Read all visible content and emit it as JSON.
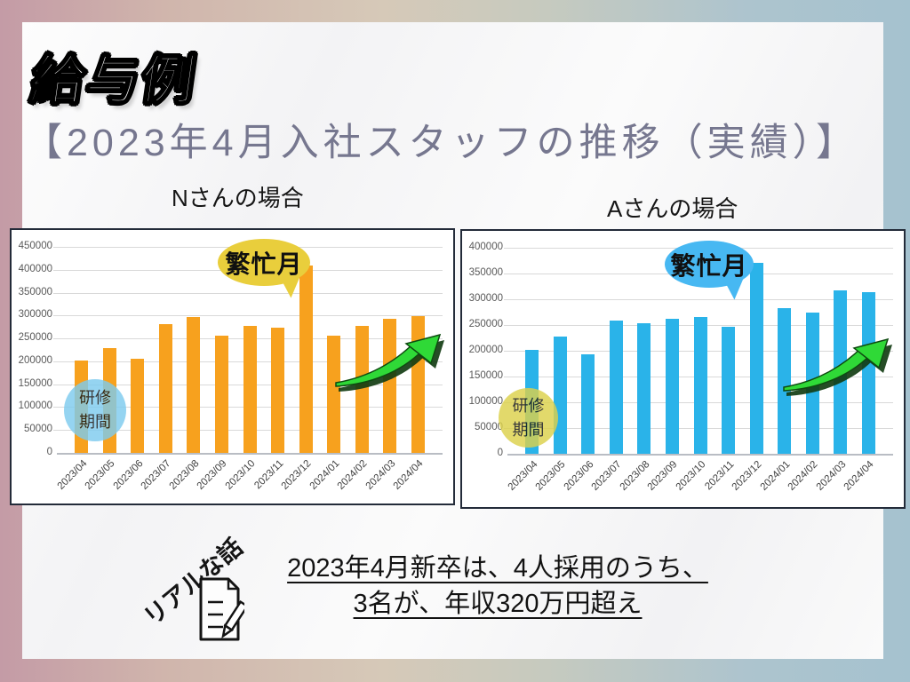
{
  "slide": {
    "title": "給与例",
    "subtitle": "【2023年4月入社スタッフの推移（実績）】",
    "background_colors": {
      "left": "#C49BA6",
      "middle": "#D6C9B8",
      "right": "#A5C2CF"
    },
    "content_panel_color": "#F6F6F8"
  },
  "chart_data": [
    {
      "type": "bar",
      "title": "Nさんの場合",
      "categories": [
        "2023/04",
        "2023/05",
        "2023/06",
        "2023/07",
        "2023/08",
        "2023/09",
        "2023/10",
        "2023/11",
        "2023/12",
        "2024/01",
        "2024/02",
        "2024/03",
        "2024/04"
      ],
      "values": [
        202000,
        228000,
        205000,
        281000,
        297000,
        257000,
        277000,
        274000,
        410000,
        257000,
        277000,
        292000,
        299000
      ],
      "ylim": [
        0,
        450000
      ],
      "yticks": [
        450000,
        400000,
        350000,
        300000,
        250000,
        200000,
        150000,
        100000,
        50000,
        0
      ],
      "grid": true,
      "legend": "none",
      "bar_color": "#F7A11E",
      "annotations": {
        "busy_month": "繁忙月",
        "busy_bubble_color": "#E9CE3C",
        "training_line1": "研修",
        "training_line2": "期間",
        "training_circle_color": "#7ECBEE",
        "arrow_color": "#2FD937"
      }
    },
    {
      "type": "bar",
      "title": "Aさんの場合",
      "categories": [
        "2023/04",
        "2023/05",
        "2023/06",
        "2023/07",
        "2023/08",
        "2023/09",
        "2023/10",
        "2023/11",
        "2023/12",
        "2024/01",
        "2024/02",
        "2024/03",
        "2024/04"
      ],
      "values": [
        202000,
        228000,
        193000,
        259000,
        254000,
        262000,
        265000,
        247000,
        370000,
        282000,
        274000,
        317000,
        314000
      ],
      "ylim": [
        0,
        400000
      ],
      "yticks": [
        400000,
        350000,
        300000,
        250000,
        200000,
        150000,
        100000,
        50000,
        0
      ],
      "grid": true,
      "legend": "none",
      "bar_color": "#2AB3E9",
      "annotations": {
        "busy_month": "繁忙月",
        "busy_bubble_color": "#47B8F2",
        "training_line1": "研修",
        "training_line2": "期間",
        "training_circle_color": "#DCD14B",
        "arrow_color": "#2FD937"
      }
    }
  ],
  "footer": {
    "handwritten_label": "リアルな話",
    "memo_icon": "memo-pencil-icon",
    "note_line1": "2023年4月新卒は、4人採用のうち、",
    "note_line2": "3名が、年収320万円超え"
  }
}
